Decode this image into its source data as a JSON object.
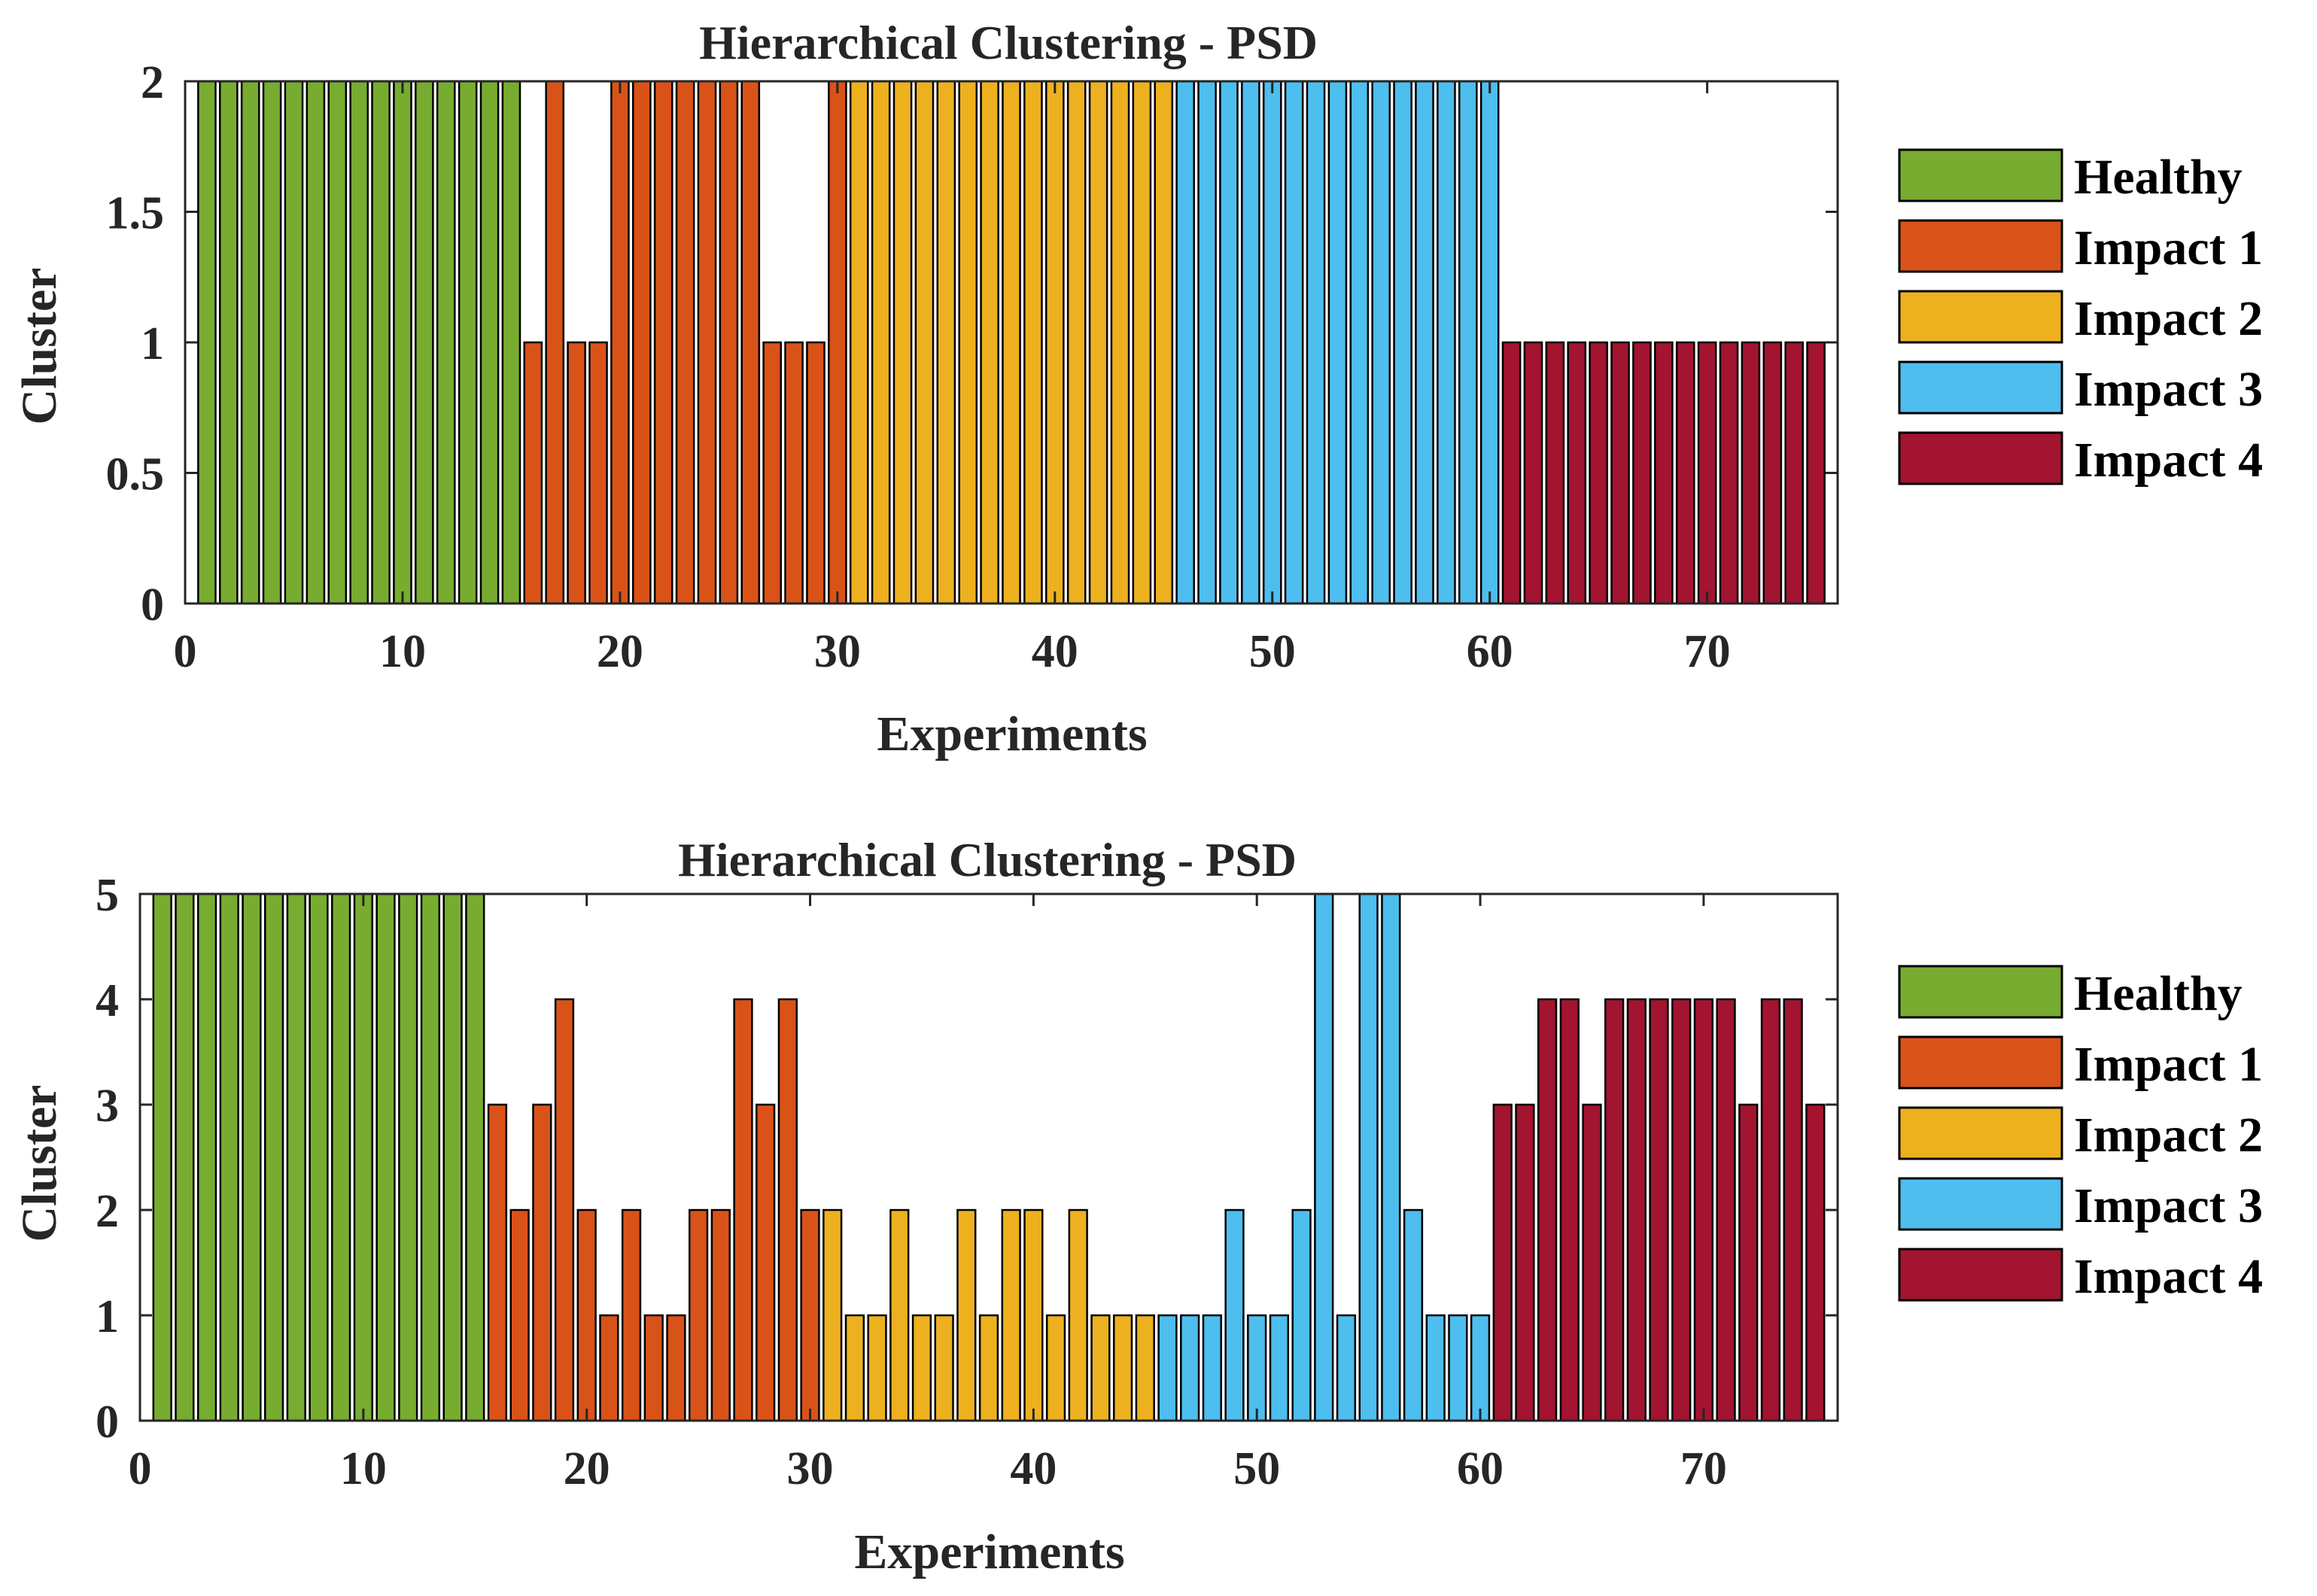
{
  "chart_data": [
    {
      "type": "bar",
      "title": "Hierarchical Clustering - PSD",
      "xlabel": "Experiments",
      "ylabel": "Cluster",
      "xlim": [
        0,
        76
      ],
      "ylim": [
        0,
        2
      ],
      "xticks": [
        0,
        10,
        20,
        30,
        40,
        50,
        60,
        70
      ],
      "yticks": [
        0,
        0.5,
        1,
        1.5,
        2
      ],
      "ytick_labels": [
        "0",
        "0.5",
        "1",
        "1.5",
        "2"
      ],
      "legend_position": "right",
      "series": [
        {
          "name": "Healthy",
          "color": "#77AC30",
          "x": [
            1,
            2,
            3,
            4,
            5,
            6,
            7,
            8,
            9,
            10,
            11,
            12,
            13,
            14,
            15
          ],
          "values": [
            2,
            2,
            2,
            2,
            2,
            2,
            2,
            2,
            2,
            2,
            2,
            2,
            2,
            2,
            2
          ]
        },
        {
          "name": "Impact 1",
          "color": "#D95319",
          "x": [
            16,
            17,
            18,
            19,
            20,
            21,
            22,
            23,
            24,
            25,
            26,
            27,
            28,
            29,
            30
          ],
          "values": [
            1,
            2,
            1,
            1,
            2,
            2,
            2,
            2,
            2,
            2,
            2,
            1,
            1,
            1,
            2
          ]
        },
        {
          "name": "Impact 2",
          "color": "#EDB120",
          "x": [
            31,
            32,
            33,
            34,
            35,
            36,
            37,
            38,
            39,
            40,
            41,
            42,
            43,
            44,
            45
          ],
          "values": [
            2,
            2,
            2,
            2,
            2,
            2,
            2,
            2,
            2,
            2,
            2,
            2,
            2,
            2,
            2
          ]
        },
        {
          "name": "Impact 3",
          "color": "#4DBEEE",
          "x": [
            46,
            47,
            48,
            49,
            50,
            51,
            52,
            53,
            54,
            55,
            56,
            57,
            58,
            59,
            60
          ],
          "values": [
            2,
            2,
            2,
            2,
            2,
            2,
            2,
            2,
            2,
            2,
            2,
            2,
            2,
            2,
            2
          ]
        },
        {
          "name": "Impact 4",
          "color": "#A2142F",
          "x": [
            61,
            62,
            63,
            64,
            65,
            66,
            67,
            68,
            69,
            70,
            71,
            72,
            73,
            74,
            75
          ],
          "values": [
            1,
            1,
            1,
            1,
            1,
            1,
            1,
            1,
            1,
            1,
            1,
            1,
            1,
            1,
            1
          ]
        }
      ]
    },
    {
      "type": "bar",
      "title": "Hierarchical Clustering - PSD",
      "xlabel": "Experiments",
      "ylabel": "Cluster",
      "xlim": [
        0,
        76
      ],
      "ylim": [
        0,
        5
      ],
      "xticks": [
        0,
        10,
        20,
        30,
        40,
        50,
        60,
        70
      ],
      "yticks": [
        0,
        1,
        2,
        3,
        4,
        5
      ],
      "ytick_labels": [
        "0",
        "1",
        "2",
        "3",
        "4",
        "5"
      ],
      "legend_position": "right",
      "series": [
        {
          "name": "Healthy",
          "color": "#77AC30",
          "x": [
            1,
            2,
            3,
            4,
            5,
            6,
            7,
            8,
            9,
            10,
            11,
            12,
            13,
            14,
            15
          ],
          "values": [
            5,
            5,
            5,
            5,
            5,
            5,
            5,
            5,
            5,
            5,
            5,
            5,
            5,
            5,
            5
          ]
        },
        {
          "name": "Impact 1",
          "color": "#D95319",
          "x": [
            16,
            17,
            18,
            19,
            20,
            21,
            22,
            23,
            24,
            25,
            26,
            27,
            28,
            29,
            30
          ],
          "values": [
            3,
            2,
            3,
            4,
            2,
            1,
            2,
            1,
            1,
            2,
            2,
            4,
            3,
            4,
            2
          ]
        },
        {
          "name": "Impact 2",
          "color": "#EDB120",
          "x": [
            31,
            32,
            33,
            34,
            35,
            36,
            37,
            38,
            39,
            40,
            41,
            42,
            43,
            44,
            45
          ],
          "values": [
            2,
            1,
            1,
            2,
            1,
            1,
            2,
            1,
            2,
            2,
            1,
            2,
            1,
            1,
            1
          ]
        },
        {
          "name": "Impact 3",
          "color": "#4DBEEE",
          "x": [
            46,
            47,
            48,
            49,
            50,
            51,
            52,
            53,
            54,
            55,
            56,
            57,
            58,
            59,
            60
          ],
          "values": [
            1,
            1,
            1,
            2,
            1,
            1,
            2,
            5,
            1,
            5,
            5,
            2,
            1,
            1,
            1
          ]
        },
        {
          "name": "Impact 4",
          "color": "#A2142F",
          "x": [
            61,
            62,
            63,
            64,
            65,
            66,
            67,
            68,
            69,
            70,
            71,
            72,
            73,
            74,
            75
          ],
          "values": [
            3,
            3,
            4,
            4,
            3,
            4,
            4,
            4,
            4,
            4,
            4,
            3,
            4,
            4,
            3
          ]
        }
      ]
    }
  ]
}
